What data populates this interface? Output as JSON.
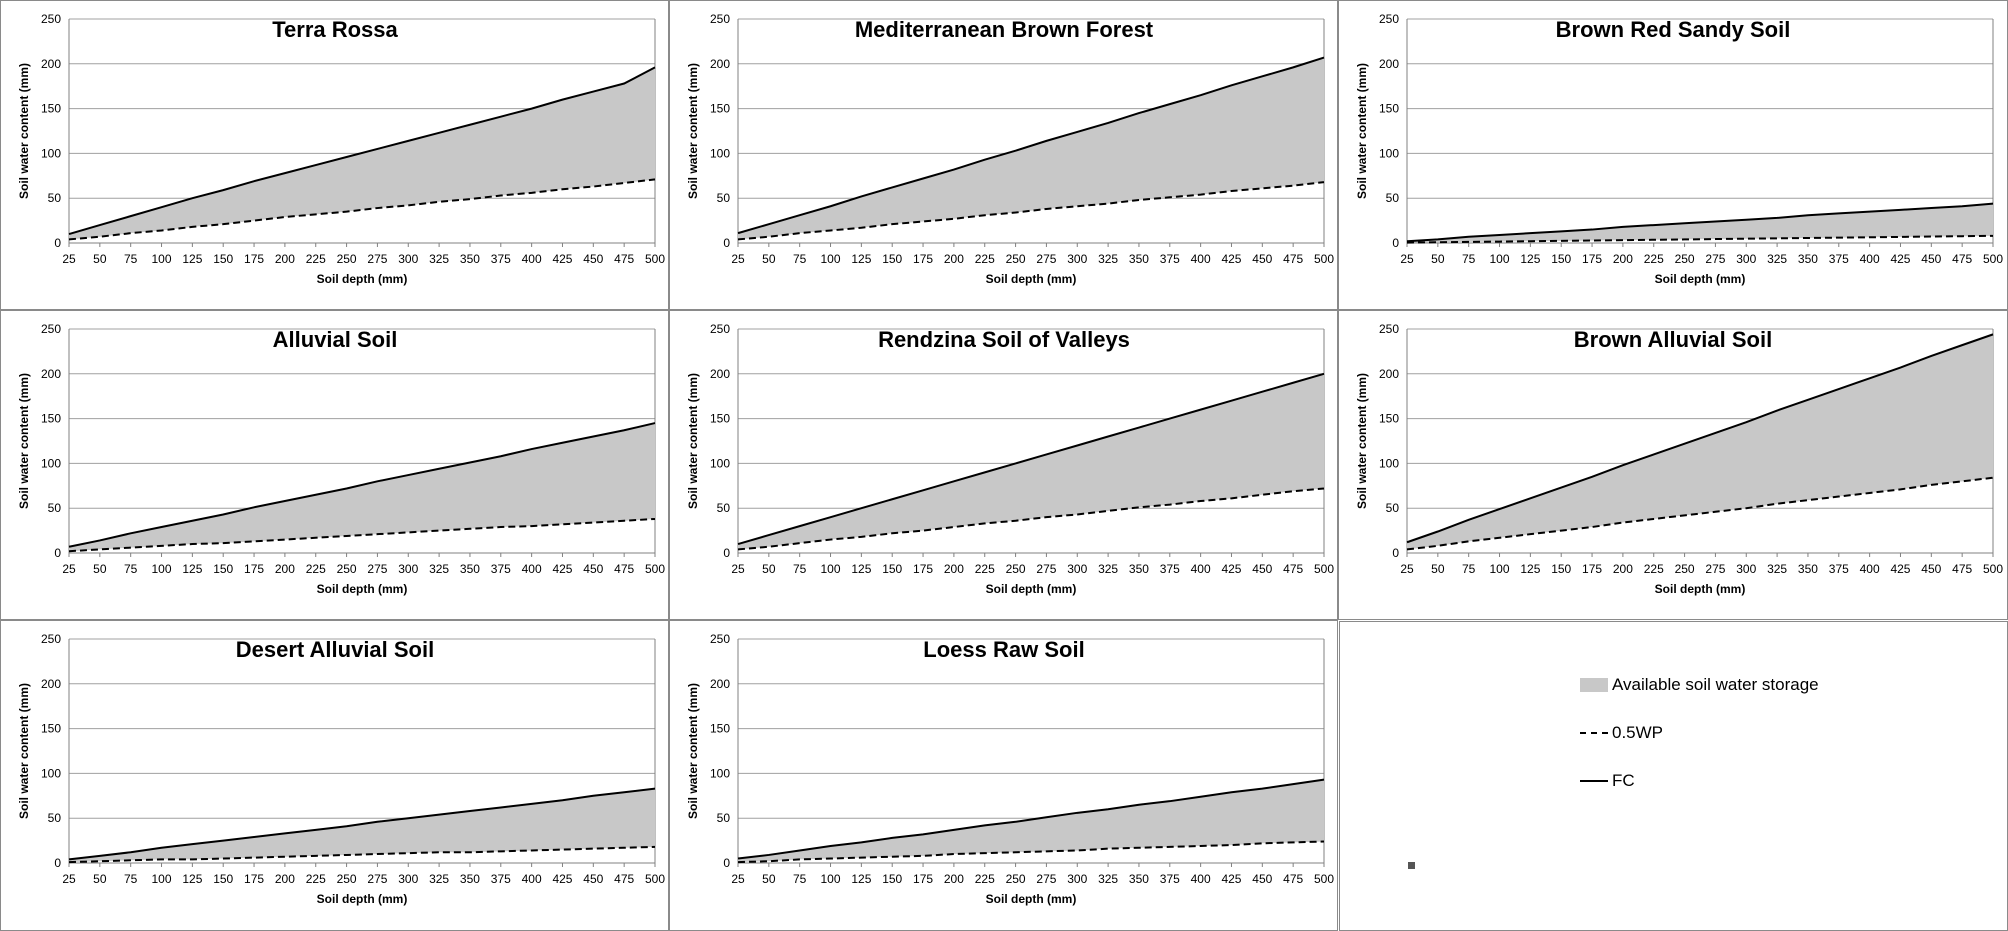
{
  "colors": {
    "fill": "#c8c8c8",
    "line": "#000000",
    "grid": "#a0a0a0",
    "axis": "#808080"
  },
  "legend": {
    "available": "Available soil water storage",
    "wp": "0.5WP",
    "fc": "FC"
  },
  "chart_data": [
    {
      "type": "area",
      "title": "Terra Rossa",
      "xlabel": "Soil depth (mm)",
      "ylabel": "Soil water content (mm)",
      "x": [
        25,
        50,
        75,
        100,
        125,
        150,
        175,
        200,
        225,
        250,
        275,
        300,
        325,
        350,
        375,
        400,
        425,
        450,
        475,
        500
      ],
      "ylim": [
        0,
        250
      ],
      "yticks": [
        0,
        50,
        100,
        150,
        200,
        250
      ],
      "grid": true,
      "series": [
        {
          "name": "FC",
          "values": [
            10,
            20,
            30,
            40,
            50,
            59,
            69,
            78,
            87,
            96,
            105,
            114,
            123,
            132,
            141,
            150,
            160,
            169,
            178,
            196
          ]
        },
        {
          "name": "0.5WP",
          "values": [
            4,
            7,
            11,
            14,
            18,
            21,
            25,
            29,
            32,
            35,
            39,
            42,
            46,
            49,
            53,
            56,
            60,
            63,
            67,
            71
          ]
        }
      ]
    },
    {
      "type": "area",
      "title": "Mediterranean Brown Forest",
      "xlabel": "Soil depth (mm)",
      "ylabel": "Soil water content (mm)",
      "x": [
        25,
        50,
        75,
        100,
        125,
        150,
        175,
        200,
        225,
        250,
        275,
        300,
        325,
        350,
        375,
        400,
        425,
        450,
        475,
        500
      ],
      "ylim": [
        0,
        250
      ],
      "yticks": [
        0,
        50,
        100,
        150,
        200,
        250
      ],
      "grid": true,
      "series": [
        {
          "name": "FC",
          "values": [
            11,
            21,
            31,
            41,
            52,
            62,
            72,
            82,
            93,
            103,
            114,
            124,
            134,
            145,
            155,
            165,
            176,
            186,
            196,
            207
          ]
        },
        {
          "name": "0.5WP",
          "values": [
            4,
            7,
            11,
            14,
            17,
            21,
            24,
            27,
            31,
            34,
            38,
            41,
            44,
            48,
            51,
            54,
            58,
            61,
            64,
            68
          ]
        }
      ]
    },
    {
      "type": "area",
      "title": "Brown Red Sandy Soil",
      "xlabel": "Soil depth (mm)",
      "ylabel": "Soil water content (mm)",
      "x": [
        25,
        50,
        75,
        100,
        125,
        150,
        175,
        200,
        225,
        250,
        275,
        300,
        325,
        350,
        375,
        400,
        425,
        450,
        475,
        500
      ],
      "ylim": [
        0,
        250
      ],
      "yticks": [
        0,
        50,
        100,
        150,
        200,
        250
      ],
      "grid": true,
      "series": [
        {
          "name": "FC",
          "values": [
            2,
            4,
            7,
            9,
            11,
            13,
            15,
            18,
            20,
            22,
            24,
            26,
            28,
            31,
            33,
            35,
            37,
            39,
            41,
            44
          ]
        },
        {
          "name": "0.5WP",
          "values": [
            0.4,
            0.8,
            1.2,
            1.6,
            2,
            2.4,
            2.8,
            3.2,
            3.6,
            4,
            4.4,
            4.8,
            5.2,
            5.6,
            6,
            6.4,
            6.8,
            7.2,
            7.6,
            8
          ]
        }
      ]
    },
    {
      "type": "area",
      "title": "Alluvial Soil",
      "xlabel": "Soil depth (mm)",
      "ylabel": "Soil water content (mm)",
      "x": [
        25,
        50,
        75,
        100,
        125,
        150,
        175,
        200,
        225,
        250,
        275,
        300,
        325,
        350,
        375,
        400,
        425,
        450,
        475,
        500
      ],
      "ylim": [
        0,
        250
      ],
      "yticks": [
        0,
        50,
        100,
        150,
        200,
        250
      ],
      "grid": true,
      "series": [
        {
          "name": "FC",
          "values": [
            7,
            14,
            22,
            29,
            36,
            43,
            51,
            58,
            65,
            72,
            80,
            87,
            94,
            101,
            108,
            116,
            123,
            130,
            137,
            145
          ]
        },
        {
          "name": "0.5WP",
          "values": [
            2,
            4,
            6,
            8,
            10,
            11,
            13,
            15,
            17,
            19,
            21,
            23,
            25,
            27,
            29,
            30,
            32,
            34,
            36,
            38
          ]
        }
      ]
    },
    {
      "type": "area",
      "title": "Rendzina Soil of Valleys",
      "xlabel": "Soil depth (mm)",
      "ylabel": "Soil water content (mm)",
      "x": [
        25,
        50,
        75,
        100,
        125,
        150,
        175,
        200,
        225,
        250,
        275,
        300,
        325,
        350,
        375,
        400,
        425,
        450,
        475,
        500
      ],
      "ylim": [
        0,
        250
      ],
      "yticks": [
        0,
        50,
        100,
        150,
        200,
        250
      ],
      "grid": true,
      "series": [
        {
          "name": "FC",
          "values": [
            10,
            20,
            30,
            40,
            50,
            60,
            70,
            80,
            90,
            100,
            110,
            120,
            130,
            140,
            150,
            160,
            170,
            180,
            190,
            200
          ]
        },
        {
          "name": "0.5WP",
          "values": [
            4,
            7,
            11,
            15,
            18,
            22,
            25,
            29,
            33,
            36,
            40,
            43,
            47,
            51,
            54,
            58,
            61,
            65,
            69,
            72
          ]
        }
      ]
    },
    {
      "type": "area",
      "title": "Brown Alluvial Soil",
      "xlabel": "Soil depth (mm)",
      "ylabel": "Soil water content (mm)",
      "x": [
        25,
        50,
        75,
        100,
        125,
        150,
        175,
        200,
        225,
        250,
        275,
        300,
        325,
        350,
        375,
        400,
        425,
        450,
        475,
        500
      ],
      "ylim": [
        0,
        250
      ],
      "yticks": [
        0,
        50,
        100,
        150,
        200,
        250
      ],
      "grid": true,
      "series": [
        {
          "name": "FC",
          "values": [
            12,
            24,
            37,
            49,
            61,
            73,
            85,
            98,
            110,
            122,
            134,
            146,
            159,
            171,
            183,
            195,
            207,
            220,
            232,
            244
          ]
        },
        {
          "name": "0.5WP",
          "values": [
            4,
            8,
            13,
            17,
            21,
            25,
            29,
            34,
            38,
            42,
            46,
            50,
            55,
            59,
            63,
            67,
            71,
            76,
            80,
            84
          ]
        }
      ]
    },
    {
      "type": "area",
      "title": "Desert Alluvial Soil",
      "xlabel": "Soil depth (mm)",
      "ylabel": "Soil water content (mm)",
      "x": [
        25,
        50,
        75,
        100,
        125,
        150,
        175,
        200,
        225,
        250,
        275,
        300,
        325,
        350,
        375,
        400,
        425,
        450,
        475,
        500
      ],
      "ylim": [
        0,
        250
      ],
      "yticks": [
        0,
        50,
        100,
        150,
        200,
        250
      ],
      "grid": true,
      "series": [
        {
          "name": "FC",
          "values": [
            4,
            8,
            12,
            17,
            21,
            25,
            29,
            33,
            37,
            41,
            46,
            50,
            54,
            58,
            62,
            66,
            70,
            75,
            79,
            83
          ]
        },
        {
          "name": "0.5WP",
          "values": [
            1,
            2,
            3,
            4,
            4,
            5,
            6,
            7,
            8,
            9,
            10,
            11,
            12,
            12,
            13,
            14,
            15,
            16,
            17,
            18
          ]
        }
      ]
    },
    {
      "type": "area",
      "title": "Loess Raw Soil",
      "xlabel": "Soil depth (mm)",
      "ylabel": "Soil water content (mm)",
      "x": [
        25,
        50,
        75,
        100,
        125,
        150,
        175,
        200,
        225,
        250,
        275,
        300,
        325,
        350,
        375,
        400,
        425,
        450,
        475,
        500
      ],
      "ylim": [
        0,
        250
      ],
      "yticks": [
        0,
        50,
        100,
        150,
        200,
        250
      ],
      "grid": true,
      "series": [
        {
          "name": "FC",
          "values": [
            5,
            9,
            14,
            19,
            23,
            28,
            32,
            37,
            42,
            46,
            51,
            56,
            60,
            65,
            69,
            74,
            79,
            83,
            88,
            93
          ]
        },
        {
          "name": "0.5WP",
          "values": [
            1,
            2,
            4,
            5,
            6,
            7,
            8,
            10,
            11,
            12,
            13,
            14,
            16,
            17,
            18,
            19,
            20,
            22,
            23,
            24
          ]
        }
      ]
    }
  ]
}
